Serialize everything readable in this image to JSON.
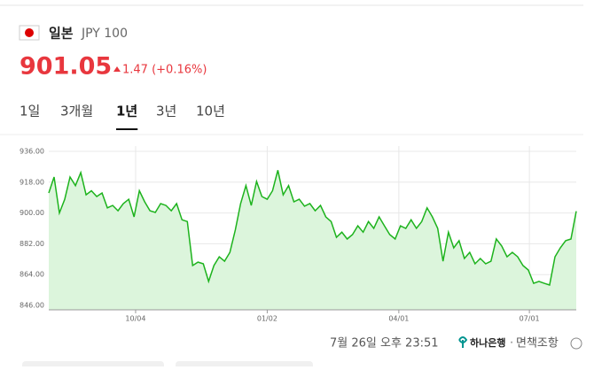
{
  "header": {
    "name": "일본",
    "code": "JPY 100",
    "price": "901.05",
    "change": "1.47 (+0.16%)"
  },
  "tabs": {
    "items": [
      "1일",
      "3개월",
      "1년",
      "3년",
      "10년"
    ],
    "active": 2
  },
  "chart_data": {
    "type": "area",
    "color": "#1db31d",
    "fill": "#dcf5dc",
    "grid": true,
    "values": [
      911.7,
      921,
      900,
      908,
      921,
      916,
      923.6,
      910.6,
      913,
      909.6,
      911.7,
      903,
      904.4,
      901.3,
      905.5,
      908,
      897.7,
      913,
      906.5,
      901.3,
      900.3,
      905.5,
      904.4,
      901.3,
      905.5,
      896,
      895,
      869.3,
      871.3,
      870.3,
      860,
      869.3,
      874.4,
      871.8,
      877,
      890,
      905.5,
      916,
      904.4,
      918.4,
      909.6,
      908,
      913,
      925,
      910.6,
      916,
      906.5,
      908,
      904,
      905.5,
      901.3,
      904.4,
      897.7,
      895,
      885.8,
      888.8,
      884.8,
      887.4,
      892.5,
      888.8,
      895,
      891,
      897.7,
      892.5,
      887.4,
      884.8,
      892.5,
      891,
      896,
      891,
      895,
      903,
      897.7,
      891,
      871.8,
      888.8,
      879.6,
      883.8,
      873.4,
      877,
      870.3,
      873.4,
      870.3,
      871.8,
      884.8,
      880.7,
      874.4,
      877,
      874.4,
      869.3,
      866.7,
      858.9,
      860,
      858.9,
      857.9,
      874.4,
      879.6,
      883.8,
      884.8,
      901.05
    ],
    "xlim": [
      0,
      99
    ],
    "xticks": [
      {
        "value": 16.3,
        "label": "10/04"
      },
      {
        "value": 41,
        "label": "01/02"
      },
      {
        "value": 65.7,
        "label": "04/01"
      },
      {
        "value": 90.2,
        "label": "07/01"
      }
    ],
    "ylim": [
      846,
      936
    ],
    "yticks": [
      {
        "value": 846,
        "label": "846.00"
      },
      {
        "value": 864,
        "label": "864.00"
      },
      {
        "value": 882,
        "label": "882.00"
      },
      {
        "value": 900,
        "label": "900.00"
      },
      {
        "value": 918,
        "label": "918.00"
      },
      {
        "value": 936,
        "label": "936.00"
      }
    ]
  },
  "footer": {
    "timestamp": "7월 26일 오후 23:51",
    "bank": "하나은행",
    "disclaimer": "면책조항"
  }
}
